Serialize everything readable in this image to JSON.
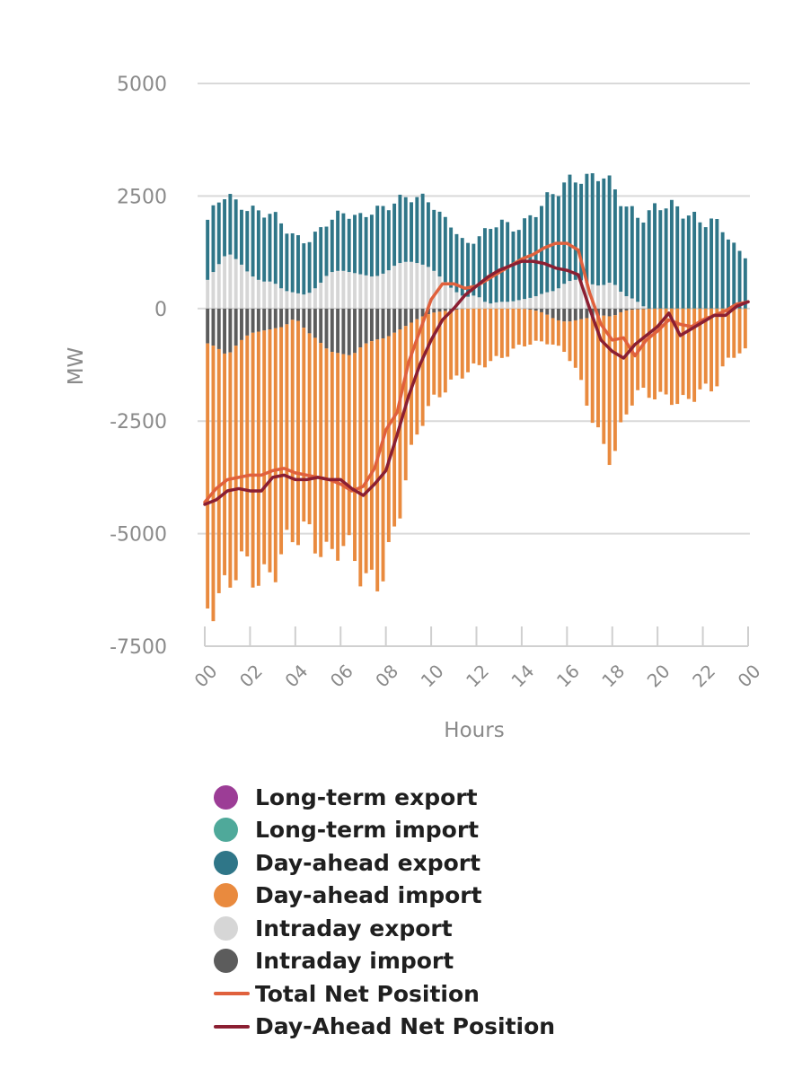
{
  "chart_data": {
    "type": "bar",
    "title": "",
    "xlabel": "Hours",
    "ylabel": "MW",
    "ylim": [
      -7500,
      5000
    ],
    "yticks": [
      5000,
      2500,
      0,
      -2500,
      -5000,
      -7500
    ],
    "ytick_labels": [
      "5000",
      "2500",
      "0",
      "-2500",
      "-5000",
      "-7500"
    ],
    "x_hours": [
      0,
      2,
      4,
      6,
      8,
      10,
      12,
      14,
      16,
      18,
      20,
      22,
      24
    ],
    "xtick_labels": [
      "00",
      "02",
      "04",
      "06",
      "08",
      "10",
      "12",
      "14",
      "16",
      "18",
      "20",
      "22",
      "00"
    ],
    "interval_minutes": 15,
    "colors": {
      "longterm_export": "#9c3d96",
      "longterm_import": "#4fa99a",
      "dayahead_export": "#2f7688",
      "dayahead_import": "#e98a3e",
      "intraday_export": "#d6d6d6",
      "intraday_import": "#5c5c5c",
      "total_net": "#e0613d",
      "dayahead_net": "#8b1f32"
    },
    "anchors": {
      "hour": [
        0,
        0.5,
        1,
        1.5,
        2,
        2.5,
        3,
        3.5,
        4,
        4.5,
        5,
        5.5,
        6,
        6.5,
        7,
        7.5,
        8,
        8.5,
        9,
        9.5,
        10,
        10.5,
        11,
        11.5,
        12,
        12.5,
        13,
        13.5,
        14,
        14.5,
        15,
        15.5,
        16,
        16.5,
        17,
        17.5,
        18,
        18.5,
        19,
        19.5,
        20,
        20.5,
        21,
        21.5,
        22,
        22.5,
        23,
        23.5,
        24
      ],
      "dayahead_export": [
        1250,
        1350,
        1350,
        1300,
        1500,
        1450,
        1450,
        1450,
        1300,
        1200,
        1150,
        1100,
        1300,
        1350,
        1300,
        1450,
        1350,
        1450,
        1500,
        1500,
        1400,
        1300,
        1450,
        1200,
        1300,
        1550,
        1750,
        1650,
        1750,
        1850,
        1950,
        2100,
        2250,
        2400,
        2350,
        2400,
        2050,
        2050,
        2000,
        2050,
        2200,
        2200,
        2250,
        2150,
        1950,
        1850,
        1650,
        1300,
        1250
      ],
      "intraday_export": [
        550,
        900,
        1250,
        1050,
        750,
        600,
        600,
        400,
        350,
        300,
        500,
        800,
        850,
        800,
        750,
        700,
        800,
        1000,
        1050,
        1000,
        900,
        650,
        400,
        250,
        300,
        100,
        150,
        150,
        200,
        250,
        350,
        400,
        600,
        650,
        550,
        500,
        600,
        300,
        200,
        0,
        0,
        0,
        0,
        0,
        0,
        0,
        0,
        0,
        0
      ],
      "dayahead_import": [
        -5700,
        -5400,
        -5200,
        -5150,
        -5350,
        -5350,
        -5150,
        -5050,
        -5050,
        -4500,
        -4400,
        -4350,
        -4300,
        -4600,
        -5300,
        -5200,
        -4850,
        -4300,
        -3300,
        -2400,
        -1900,
        -1700,
        -1600,
        -1500,
        -1300,
        -1150,
        -1050,
        -1000,
        -850,
        -750,
        -600,
        -550,
        -700,
        -1300,
        -2100,
        -2700,
        -3050,
        -2500,
        -1950,
        -1900,
        -1850,
        -1900,
        -2150,
        -2100,
        -1800,
        -1700,
        -1150,
        -1000,
        -1000
      ],
      "intraday_import": [
        -750,
        -850,
        -1050,
        -750,
        -550,
        -500,
        -450,
        -400,
        -200,
        -500,
        -700,
        -950,
        -1000,
        -1050,
        -800,
        -700,
        -650,
        -500,
        -350,
        -200,
        -100,
        -60,
        -30,
        0,
        0,
        0,
        0,
        0,
        0,
        -30,
        -100,
        -250,
        -300,
        -250,
        -200,
        -150,
        -180,
        -50,
        -20,
        -10,
        0,
        0,
        0,
        0,
        0,
        0,
        0,
        0,
        0
      ],
      "total_net": [
        -4300,
        -4000,
        -3800,
        -3750,
        -3700,
        -3700,
        -3600,
        -3550,
        -3650,
        -3700,
        -3750,
        -3800,
        -3900,
        -4050,
        -3950,
        -3550,
        -2700,
        -2300,
        -1200,
        -500,
        200,
        550,
        550,
        450,
        500,
        650,
        800,
        950,
        1100,
        1200,
        1350,
        1450,
        1450,
        1300,
        350,
        -350,
        -700,
        -650,
        -1050,
        -700,
        -500,
        -250,
        -350,
        -400,
        -250,
        -150,
        -50,
        100,
        150
      ],
      "dayahead_net": [
        -4350,
        -4250,
        -4050,
        -4000,
        -4050,
        -4050,
        -3750,
        -3700,
        -3800,
        -3800,
        -3750,
        -3800,
        -3800,
        -4000,
        -4150,
        -3900,
        -3600,
        -2800,
        -1950,
        -1250,
        -700,
        -250,
        0,
        300,
        500,
        700,
        850,
        950,
        1050,
        1050,
        1000,
        900,
        850,
        750,
        0,
        -700,
        -950,
        -1100,
        -800,
        -600,
        -400,
        -100,
        -600,
        -450,
        -300,
        -150,
        -150,
        50,
        150
      ]
    },
    "legend": [
      {
        "label": "Long-term export",
        "swatch": "dot",
        "color": "#9c3d96"
      },
      {
        "label": "Long-term import",
        "swatch": "dot",
        "color": "#4fa99a"
      },
      {
        "label": "Day-ahead export",
        "swatch": "dot",
        "color": "#2f7688"
      },
      {
        "label": "Day-ahead import",
        "swatch": "dot",
        "color": "#e98a3e"
      },
      {
        "label": "Intraday export",
        "swatch": "dot",
        "color": "#d6d6d6"
      },
      {
        "label": "Intraday import",
        "swatch": "dot",
        "color": "#5c5c5c"
      },
      {
        "label": "Total Net Position",
        "swatch": "line",
        "color": "#e0613d"
      },
      {
        "label": "Day-Ahead Net Position",
        "swatch": "line",
        "color": "#8b1f32"
      }
    ],
    "legend_position": "bottom"
  }
}
